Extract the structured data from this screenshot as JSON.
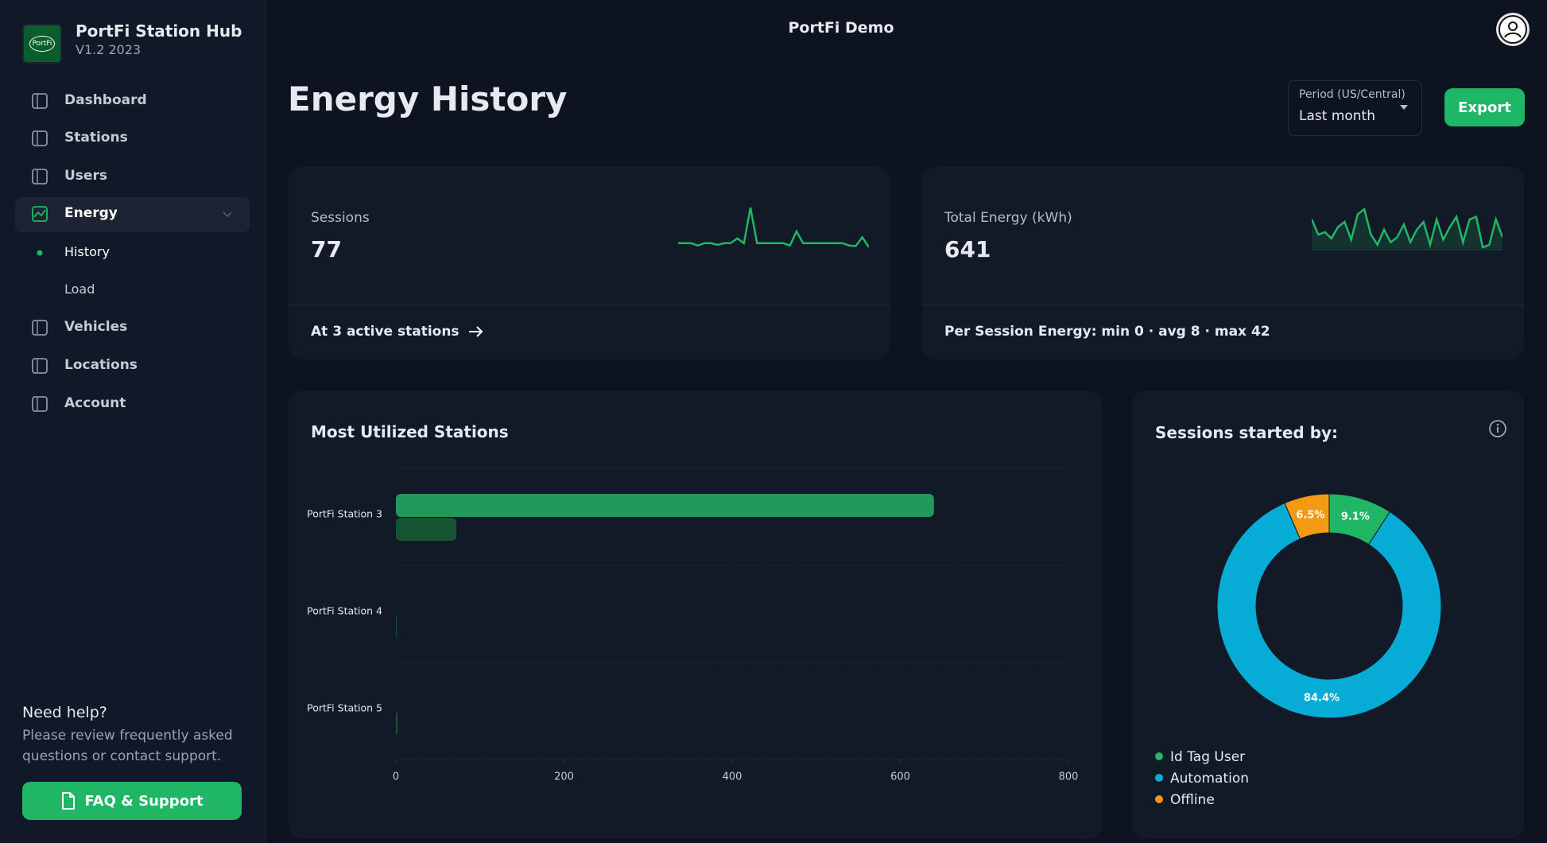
{
  "sidebar": {
    "brand": {
      "logo": "PortFi",
      "name": "PortFi Station Hub",
      "version": "V1.2 2023"
    },
    "nav": [
      "Dashboard",
      "Stations",
      "Users",
      "Energy",
      "History",
      "Load",
      "Vehicles",
      "Locations",
      "Account"
    ],
    "help": {
      "title": "Need help?",
      "text": "Please review frequently asked questions or contact support.",
      "button": "FAQ & Support"
    }
  },
  "header": {
    "org": "PortFi Demo",
    "title": "Energy History",
    "period_label": "Period (US/Central)",
    "period_value": "Last month",
    "export": "Export"
  },
  "sessions_card": {
    "label": "Sessions",
    "value": "77",
    "footer": "At 3 active stations",
    "sparkline": [
      1,
      1,
      1,
      0.6,
      1,
      1,
      0.7,
      1,
      1,
      1.8,
      1,
      7,
      1,
      1,
      1,
      1,
      1,
      0.6,
      3,
      1,
      1,
      1,
      1,
      1,
      1,
      1,
      0.6,
      0.5,
      2,
      0.3
    ]
  },
  "energy_card": {
    "label": "Total Energy (kWh)",
    "value": "641",
    "footer": "Per Session Energy: min 0 · avg 8 · max 42",
    "sparkline": [
      30,
      18,
      20,
      15,
      24,
      28,
      14,
      34,
      38,
      18,
      10,
      22,
      12,
      16,
      26,
      12,
      22,
      28,
      10,
      30,
      14,
      24,
      32,
      12,
      30,
      32,
      8,
      10,
      30,
      16
    ]
  },
  "bar_chart": {
    "type": "bar",
    "orientation": "horizontal",
    "title": "Most Utilized Stations",
    "categories": [
      "PortFi Station 3",
      "PortFi Station 4",
      "PortFi Station 5"
    ],
    "series": [
      {
        "color": "#22995a",
        "values": [
          640,
          0,
          0
        ]
      },
      {
        "color": "#145433",
        "values": [
          72,
          1,
          2
        ]
      }
    ],
    "xlim": [
      0,
      800
    ],
    "xticks": [
      0,
      200,
      400,
      600,
      800
    ],
    "grid": true
  },
  "donut_chart": {
    "type": "donut",
    "title": "Sessions started by:",
    "categories": [
      "Id Tag User",
      "Automation",
      "Offline"
    ],
    "values": [
      9.1,
      84.4,
      6.5
    ],
    "value_labels": [
      "9.1%",
      "84.4%",
      "6.5%"
    ],
    "colors": [
      "#1fb765",
      "#06acd6",
      "#f39a12"
    ]
  }
}
